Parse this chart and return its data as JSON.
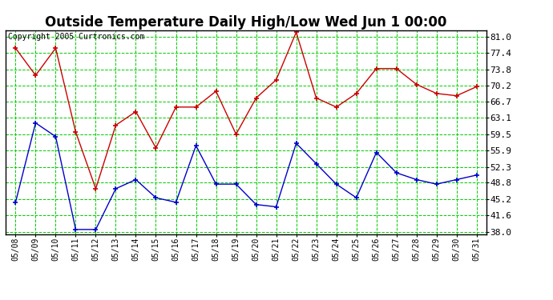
{
  "title": "Outside Temperature Daily High/Low Wed Jun 1 00:00",
  "copyright": "Copyright 2005 Curtronics.com",
  "dates": [
    "05/08",
    "05/09",
    "05/10",
    "05/11",
    "05/12",
    "05/13",
    "05/14",
    "05/15",
    "05/16",
    "05/17",
    "05/18",
    "05/19",
    "05/20",
    "05/21",
    "05/22",
    "05/23",
    "05/24",
    "05/25",
    "05/26",
    "05/27",
    "05/28",
    "05/29",
    "05/30",
    "05/31"
  ],
  "high": [
    78.5,
    72.5,
    78.5,
    60.0,
    47.5,
    61.5,
    64.5,
    56.5,
    65.5,
    65.5,
    69.0,
    59.5,
    67.5,
    71.5,
    82.0,
    67.5,
    65.5,
    68.5,
    74.0,
    74.0,
    70.5,
    68.5,
    68.0,
    70.0
  ],
  "low": [
    44.5,
    62.0,
    59.0,
    38.5,
    38.5,
    47.5,
    49.5,
    45.5,
    44.5,
    57.0,
    48.5,
    48.5,
    44.0,
    43.5,
    57.5,
    53.0,
    48.5,
    45.5,
    55.5,
    51.0,
    49.5,
    48.5,
    49.5,
    50.5
  ],
  "high_color": "#cc0000",
  "low_color": "#0000cc",
  "bg_color": "#ffffff",
  "plot_bg_color": "#ffffff",
  "grid_color": "#00cc00",
  "yticks": [
    38.0,
    41.6,
    45.2,
    48.8,
    52.3,
    55.9,
    59.5,
    63.1,
    66.7,
    70.2,
    73.8,
    77.4,
    81.0
  ],
  "ylim": [
    37.5,
    82.5
  ],
  "title_fontsize": 12,
  "border_color": "#000000"
}
